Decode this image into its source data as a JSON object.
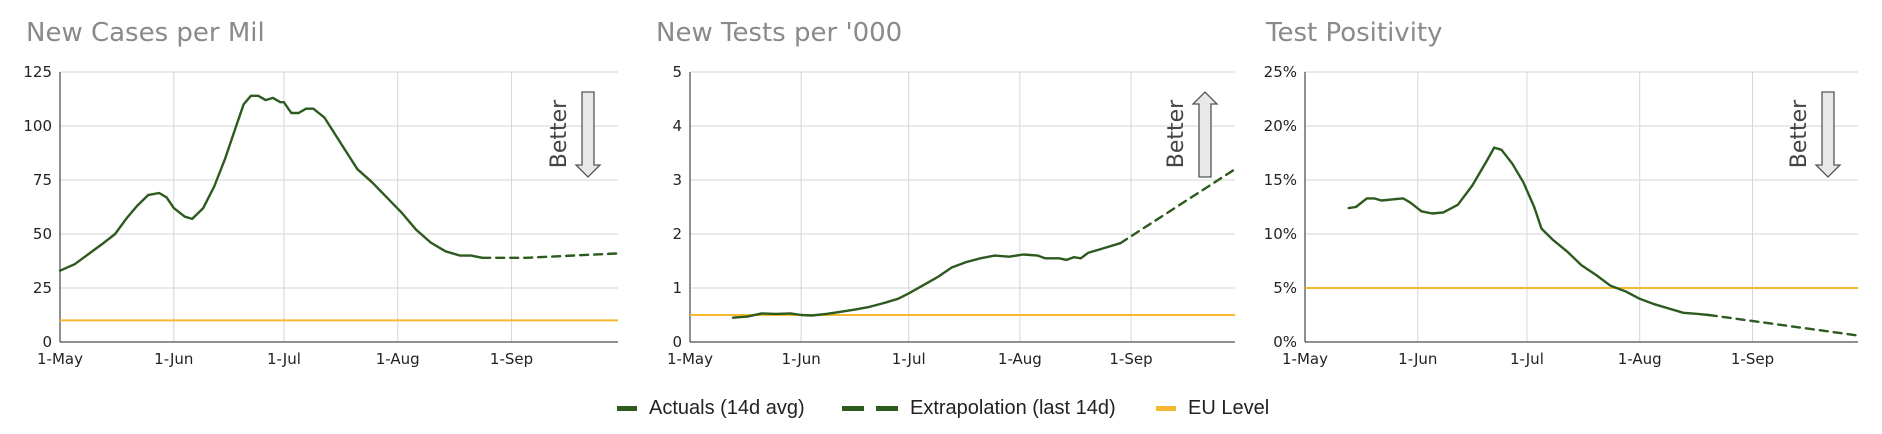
{
  "colors": {
    "actual": "#2d5a1e",
    "eu": "#f5b82e",
    "grid": "#d6d6d6",
    "axis": "#222222",
    "title": "#8a8a8a",
    "arrow_fill": "#e8e8e8",
    "arrow_stroke": "#555555"
  },
  "legend": {
    "actual_label": "Actuals (14d avg)",
    "extrap_label": "Extrapolation (last 14d)",
    "eu_label": "EU Level"
  },
  "chart_data": [
    {
      "type": "line",
      "title": "New Cases per Mil",
      "better_label": "Better",
      "better_direction": "down",
      "xlim": [
        "2020-05-01",
        "2020-09-30"
      ],
      "x_ticks": [
        {
          "date": "2020-05-01",
          "label": "1-May"
        },
        {
          "date": "2020-06-01",
          "label": "1-Jun"
        },
        {
          "date": "2020-07-01",
          "label": "1-Jul"
        },
        {
          "date": "2020-08-01",
          "label": "1-Aug"
        },
        {
          "date": "2020-09-01",
          "label": "1-Sep"
        }
      ],
      "ylim": [
        0,
        125
      ],
      "y_ticks": [
        0,
        25,
        50,
        75,
        100,
        125
      ],
      "y_tick_labels": [
        "0",
        "25",
        "50",
        "75",
        "100",
        "125"
      ],
      "grid": true,
      "eu_level": 10,
      "series": [
        {
          "name": "Actuals (14d avg)",
          "style": "solid",
          "points": [
            [
              "2020-05-01",
              33
            ],
            [
              "2020-05-05",
              36
            ],
            [
              "2020-05-09",
              41
            ],
            [
              "2020-05-13",
              46
            ],
            [
              "2020-05-16",
              50
            ],
            [
              "2020-05-19",
              57
            ],
            [
              "2020-05-22",
              63
            ],
            [
              "2020-05-25",
              68
            ],
            [
              "2020-05-28",
              69
            ],
            [
              "2020-05-30",
              67
            ],
            [
              "2020-06-01",
              62
            ],
            [
              "2020-06-04",
              58
            ],
            [
              "2020-06-06",
              57
            ],
            [
              "2020-06-09",
              62
            ],
            [
              "2020-06-12",
              72
            ],
            [
              "2020-06-15",
              85
            ],
            [
              "2020-06-18",
              100
            ],
            [
              "2020-06-20",
              110
            ],
            [
              "2020-06-22",
              114
            ],
            [
              "2020-06-24",
              114
            ],
            [
              "2020-06-26",
              112
            ],
            [
              "2020-06-28",
              113
            ],
            [
              "2020-06-30",
              111
            ],
            [
              "2020-07-01",
              111
            ],
            [
              "2020-07-03",
              106
            ],
            [
              "2020-07-05",
              106
            ],
            [
              "2020-07-07",
              108
            ],
            [
              "2020-07-09",
              108
            ],
            [
              "2020-07-12",
              104
            ],
            [
              "2020-07-15",
              96
            ],
            [
              "2020-07-18",
              88
            ],
            [
              "2020-07-21",
              80
            ],
            [
              "2020-07-25",
              74
            ],
            [
              "2020-07-29",
              67
            ],
            [
              "2020-08-02",
              60
            ],
            [
              "2020-08-06",
              52
            ],
            [
              "2020-08-10",
              46
            ],
            [
              "2020-08-14",
              42
            ],
            [
              "2020-08-18",
              40
            ],
            [
              "2020-08-21",
              40
            ],
            [
              "2020-08-24",
              39
            ]
          ]
        },
        {
          "name": "Extrapolation (last 14d)",
          "style": "dashed",
          "points": [
            [
              "2020-08-24",
              39
            ],
            [
              "2020-09-05",
              39
            ],
            [
              "2020-09-30",
              41
            ]
          ]
        }
      ]
    },
    {
      "type": "line",
      "title": "New Tests per '000",
      "better_label": "Better",
      "better_direction": "up",
      "xlim": [
        "2020-05-01",
        "2020-09-30"
      ],
      "x_ticks": [
        {
          "date": "2020-05-01",
          "label": "1-May"
        },
        {
          "date": "2020-06-01",
          "label": "1-Jun"
        },
        {
          "date": "2020-07-01",
          "label": "1-Jul"
        },
        {
          "date": "2020-08-01",
          "label": "1-Aug"
        },
        {
          "date": "2020-09-01",
          "label": "1-Sep"
        }
      ],
      "ylim": [
        0,
        5
      ],
      "y_ticks": [
        0,
        1,
        2,
        3,
        4,
        5
      ],
      "y_tick_labels": [
        "0",
        "1",
        "2",
        "3",
        "4",
        "5"
      ],
      "grid": true,
      "eu_level": 0.5,
      "series": [
        {
          "name": "Actuals (14d avg)",
          "style": "solid",
          "points": [
            [
              "2020-05-13",
              0.45
            ],
            [
              "2020-05-17",
              0.47
            ],
            [
              "2020-05-21",
              0.53
            ],
            [
              "2020-05-25",
              0.52
            ],
            [
              "2020-05-29",
              0.53
            ],
            [
              "2020-06-01",
              0.5
            ],
            [
              "2020-06-04",
              0.49
            ],
            [
              "2020-06-08",
              0.52
            ],
            [
              "2020-06-12",
              0.56
            ],
            [
              "2020-06-16",
              0.6
            ],
            [
              "2020-06-20",
              0.65
            ],
            [
              "2020-06-24",
              0.72
            ],
            [
              "2020-06-28",
              0.8
            ],
            [
              "2020-07-01",
              0.9
            ],
            [
              "2020-07-05",
              1.05
            ],
            [
              "2020-07-09",
              1.2
            ],
            [
              "2020-07-13",
              1.38
            ],
            [
              "2020-07-17",
              1.48
            ],
            [
              "2020-07-21",
              1.55
            ],
            [
              "2020-07-25",
              1.6
            ],
            [
              "2020-07-29",
              1.58
            ],
            [
              "2020-08-02",
              1.62
            ],
            [
              "2020-08-06",
              1.6
            ],
            [
              "2020-08-08",
              1.55
            ],
            [
              "2020-08-12",
              1.55
            ],
            [
              "2020-08-14",
              1.52
            ],
            [
              "2020-08-16",
              1.57
            ],
            [
              "2020-08-18",
              1.55
            ],
            [
              "2020-08-20",
              1.65
            ],
            [
              "2020-08-24",
              1.73
            ],
            [
              "2020-08-29",
              1.83
            ]
          ]
        },
        {
          "name": "Extrapolation (last 14d)",
          "style": "dashed",
          "points": [
            [
              "2020-08-29",
              1.83
            ],
            [
              "2020-09-30",
              3.2
            ]
          ]
        }
      ]
    },
    {
      "type": "line",
      "title": "Test Positivity",
      "better_label": "Better",
      "better_direction": "down",
      "xlim": [
        "2020-05-01",
        "2020-09-30"
      ],
      "x_ticks": [
        {
          "date": "2020-05-01",
          "label": "1-May"
        },
        {
          "date": "2020-06-01",
          "label": "1-Jun"
        },
        {
          "date": "2020-07-01",
          "label": "1-Jul"
        },
        {
          "date": "2020-08-01",
          "label": "1-Aug"
        },
        {
          "date": "2020-09-01",
          "label": "1-Sep"
        }
      ],
      "ylim": [
        0,
        25
      ],
      "y_ticks": [
        0,
        5,
        10,
        15,
        20,
        25
      ],
      "y_tick_labels": [
        "0%",
        "5%",
        "10%",
        "15%",
        "20%",
        "25%"
      ],
      "grid": true,
      "eu_level": 5,
      "series": [
        {
          "name": "Actuals (14d avg)",
          "style": "solid",
          "points": [
            [
              "2020-05-13",
              12.4
            ],
            [
              "2020-05-15",
              12.5
            ],
            [
              "2020-05-18",
              13.3
            ],
            [
              "2020-05-20",
              13.3
            ],
            [
              "2020-05-22",
              13.1
            ],
            [
              "2020-05-25",
              13.2
            ],
            [
              "2020-05-28",
              13.3
            ],
            [
              "2020-05-30",
              12.9
            ],
            [
              "2020-06-02",
              12.1
            ],
            [
              "2020-06-05",
              11.9
            ],
            [
              "2020-06-08",
              12.0
            ],
            [
              "2020-06-12",
              12.7
            ],
            [
              "2020-06-16",
              14.5
            ],
            [
              "2020-06-20",
              16.8
            ],
            [
              "2020-06-22",
              18.0
            ],
            [
              "2020-06-24",
              17.8
            ],
            [
              "2020-06-27",
              16.5
            ],
            [
              "2020-06-30",
              14.8
            ],
            [
              "2020-07-03",
              12.5
            ],
            [
              "2020-07-05",
              10.5
            ],
            [
              "2020-07-08",
              9.5
            ],
            [
              "2020-07-12",
              8.4
            ],
            [
              "2020-07-16",
              7.1
            ],
            [
              "2020-07-20",
              6.2
            ],
            [
              "2020-07-24",
              5.2
            ],
            [
              "2020-07-28",
              4.7
            ],
            [
              "2020-08-01",
              4.0
            ],
            [
              "2020-08-05",
              3.5
            ],
            [
              "2020-08-09",
              3.1
            ],
            [
              "2020-08-13",
              2.7
            ],
            [
              "2020-08-17",
              2.6
            ],
            [
              "2020-08-20",
              2.5
            ]
          ]
        },
        {
          "name": "Extrapolation (last 14d)",
          "style": "dashed",
          "points": [
            [
              "2020-08-20",
              2.5
            ],
            [
              "2020-09-30",
              0.6
            ]
          ]
        }
      ]
    }
  ]
}
